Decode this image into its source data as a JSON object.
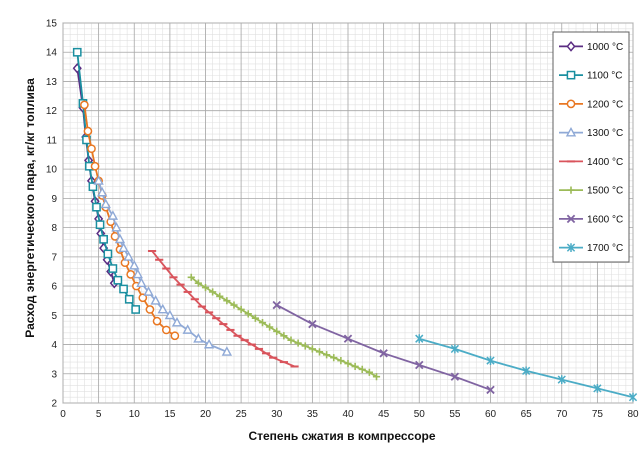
{
  "chart_data": {
    "type": "line",
    "xlabel": "Степень сжатия в компрессоре",
    "ylabel": "Расход энергетического пара, кг/кг топлива",
    "xlim": [
      0,
      80
    ],
    "ylim": [
      2,
      15
    ],
    "x_ticks": [
      0,
      5,
      10,
      15,
      20,
      25,
      30,
      35,
      40,
      45,
      50,
      55,
      60,
      65,
      70,
      75,
      80
    ],
    "y_ticks": [
      2,
      3,
      4,
      5,
      6,
      7,
      8,
      9,
      10,
      11,
      12,
      13,
      14,
      15
    ],
    "x_minor_step": 1,
    "y_minor_step": 0.2,
    "grid": true,
    "legend_position": "right",
    "series": [
      {
        "name": "1000 °C",
        "color": "#5b2d83",
        "marker": "diamond",
        "points": [
          [
            2,
            13.45
          ],
          [
            2.8,
            12.1
          ],
          [
            3.2,
            11.1
          ],
          [
            3.6,
            10.3
          ],
          [
            4,
            9.6
          ],
          [
            4.5,
            8.9
          ],
          [
            5,
            8.3
          ],
          [
            5.3,
            7.8
          ],
          [
            5.7,
            7.3
          ],
          [
            6.2,
            6.9
          ],
          [
            6.7,
            6.5
          ],
          [
            7.2,
            6.1
          ]
        ]
      },
      {
        "name": "1100 °C",
        "color": "#1a8fa0",
        "marker": "square",
        "points": [
          [
            2,
            14.0
          ],
          [
            2.8,
            12.25
          ],
          [
            3.3,
            11.0
          ],
          [
            3.7,
            10.1
          ],
          [
            4.2,
            9.4
          ],
          [
            4.7,
            8.7
          ],
          [
            5.2,
            8.1
          ],
          [
            5.7,
            7.6
          ],
          [
            6.3,
            7.1
          ],
          [
            7,
            6.6
          ],
          [
            7.7,
            6.2
          ],
          [
            8.5,
            5.9
          ],
          [
            9.3,
            5.55
          ],
          [
            10.2,
            5.2
          ]
        ]
      },
      {
        "name": "1200 °C",
        "color": "#e87722",
        "marker": "circle",
        "points": [
          [
            3,
            12.2
          ],
          [
            3.5,
            11.3
          ],
          [
            4,
            10.7
          ],
          [
            4.5,
            10.1
          ],
          [
            5,
            9.6
          ],
          [
            5.5,
            9.1
          ],
          [
            6,
            8.7
          ],
          [
            6.7,
            8.2
          ],
          [
            7.3,
            7.7
          ],
          [
            8,
            7.25
          ],
          [
            8.7,
            6.8
          ],
          [
            9.5,
            6.4
          ],
          [
            10.3,
            6.0
          ],
          [
            11.2,
            5.6
          ],
          [
            12.2,
            5.2
          ],
          [
            13.2,
            4.8
          ],
          [
            14.5,
            4.5
          ],
          [
            15.7,
            4.3
          ]
        ]
      },
      {
        "name": "1300 °C",
        "color": "#8fa9d6",
        "marker": "triangle",
        "points": [
          [
            5,
            9.6
          ],
          [
            5.5,
            9.2
          ],
          [
            6,
            8.8
          ],
          [
            7,
            8.4
          ],
          [
            7.5,
            8.0
          ],
          [
            8,
            7.6
          ],
          [
            8.5,
            7.3
          ],
          [
            9.2,
            7.0
          ],
          [
            10,
            6.7
          ],
          [
            10.5,
            6.4
          ],
          [
            11,
            6.1
          ],
          [
            12,
            5.8
          ],
          [
            13,
            5.5
          ],
          [
            14,
            5.2
          ],
          [
            15,
            5.0
          ],
          [
            16,
            4.75
          ],
          [
            17.5,
            4.5
          ],
          [
            19,
            4.2
          ],
          [
            20.5,
            4.0
          ],
          [
            23,
            3.75
          ]
        ]
      },
      {
        "name": "1400 °C",
        "color": "#d9545c",
        "marker": "dash",
        "points": [
          [
            12.5,
            7.2
          ],
          [
            13.5,
            6.9
          ],
          [
            14.5,
            6.6
          ],
          [
            15.5,
            6.3
          ],
          [
            16.5,
            6.05
          ],
          [
            17.5,
            5.8
          ],
          [
            18.5,
            5.55
          ],
          [
            19.5,
            5.3
          ],
          [
            20.5,
            5.1
          ],
          [
            21.5,
            4.9
          ],
          [
            22.5,
            4.7
          ],
          [
            23.5,
            4.5
          ],
          [
            24.5,
            4.3
          ],
          [
            25.5,
            4.15
          ],
          [
            26.5,
            4.0
          ],
          [
            27.5,
            3.85
          ],
          [
            28.5,
            3.7
          ],
          [
            29.5,
            3.55
          ],
          [
            31,
            3.4
          ],
          [
            32.5,
            3.25
          ]
        ]
      },
      {
        "name": "1500 °C",
        "color": "#9cbb58",
        "marker": "plus",
        "points": [
          [
            18,
            6.3
          ],
          [
            19,
            6.1
          ],
          [
            20,
            5.95
          ],
          [
            21,
            5.8
          ],
          [
            22,
            5.65
          ],
          [
            23,
            5.5
          ],
          [
            24,
            5.35
          ],
          [
            25,
            5.2
          ],
          [
            26,
            5.05
          ],
          [
            27,
            4.9
          ],
          [
            28,
            4.75
          ],
          [
            29,
            4.6
          ],
          [
            30,
            4.45
          ],
          [
            31,
            4.3
          ],
          [
            32,
            4.15
          ],
          [
            33,
            4.05
          ],
          [
            34,
            3.95
          ],
          [
            35,
            3.85
          ],
          [
            36,
            3.75
          ],
          [
            37,
            3.65
          ],
          [
            38,
            3.55
          ],
          [
            39,
            3.45
          ],
          [
            40,
            3.35
          ],
          [
            41,
            3.25
          ],
          [
            42,
            3.15
          ],
          [
            43,
            3.05
          ],
          [
            44,
            2.9
          ]
        ]
      },
      {
        "name": "1600 °C",
        "color": "#8064a2",
        "marker": "x",
        "points": [
          [
            30,
            5.35
          ],
          [
            35,
            4.7
          ],
          [
            40,
            4.2
          ],
          [
            45,
            3.7
          ],
          [
            50,
            3.3
          ],
          [
            55,
            2.9
          ],
          [
            60,
            2.45
          ]
        ]
      },
      {
        "name": "1700 °C",
        "color": "#4bacc6",
        "marker": "star",
        "points": [
          [
            50,
            4.2
          ],
          [
            55,
            3.85
          ],
          [
            60,
            3.45
          ],
          [
            65,
            3.1
          ],
          [
            70,
            2.8
          ],
          [
            75,
            2.5
          ],
          [
            80,
            2.2
          ]
        ]
      }
    ]
  }
}
